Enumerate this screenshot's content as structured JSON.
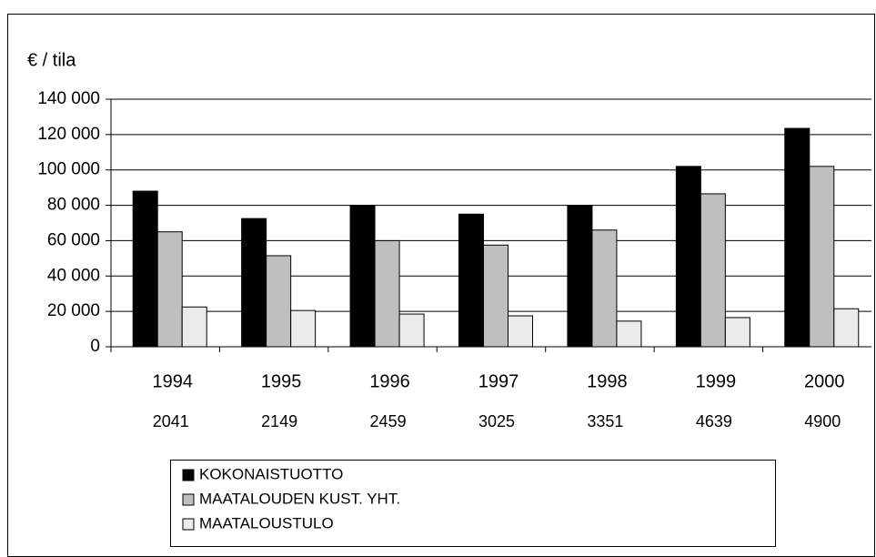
{
  "chart_data": {
    "type": "bar",
    "y_axis_label": "€ / tila",
    "categories": [
      "1994",
      "1995",
      "1996",
      "1997",
      "1998",
      "1999",
      "2000"
    ],
    "category_sublabels": [
      "2041",
      "2149",
      "2459",
      "3025",
      "3351",
      "4639",
      "4900"
    ],
    "series": [
      {
        "name": "KOKONAISTUOTTO",
        "color": "#000000",
        "values": [
          88000,
          72500,
          80000,
          75000,
          80000,
          102000,
          123500
        ]
      },
      {
        "name": "MAATALOUDEN KUST. YHT.",
        "color": "#bfbfbf",
        "values": [
          65000,
          51500,
          60000,
          57500,
          66000,
          86500,
          102000
        ]
      },
      {
        "name": "MAATALOUSTULO",
        "color": "#ebebeb",
        "values": [
          22500,
          20500,
          18500,
          17500,
          14500,
          16500,
          21500
        ]
      }
    ],
    "ylim": [
      0,
      140000
    ],
    "yticks": [
      0,
      {
        "value": 20000,
        "label": "20 000"
      },
      {
        "value": 40000,
        "label": "40 000"
      },
      {
        "value": 60000,
        "label": "60 000"
      },
      {
        "value": 80000,
        "label": "80 000"
      },
      {
        "value": 100000,
        "label": "100 000"
      },
      {
        "value": 120000,
        "label": "120 000"
      },
      {
        "value": 140000,
        "label": "140 000"
      }
    ],
    "grid": true,
    "legend": "bottom"
  }
}
